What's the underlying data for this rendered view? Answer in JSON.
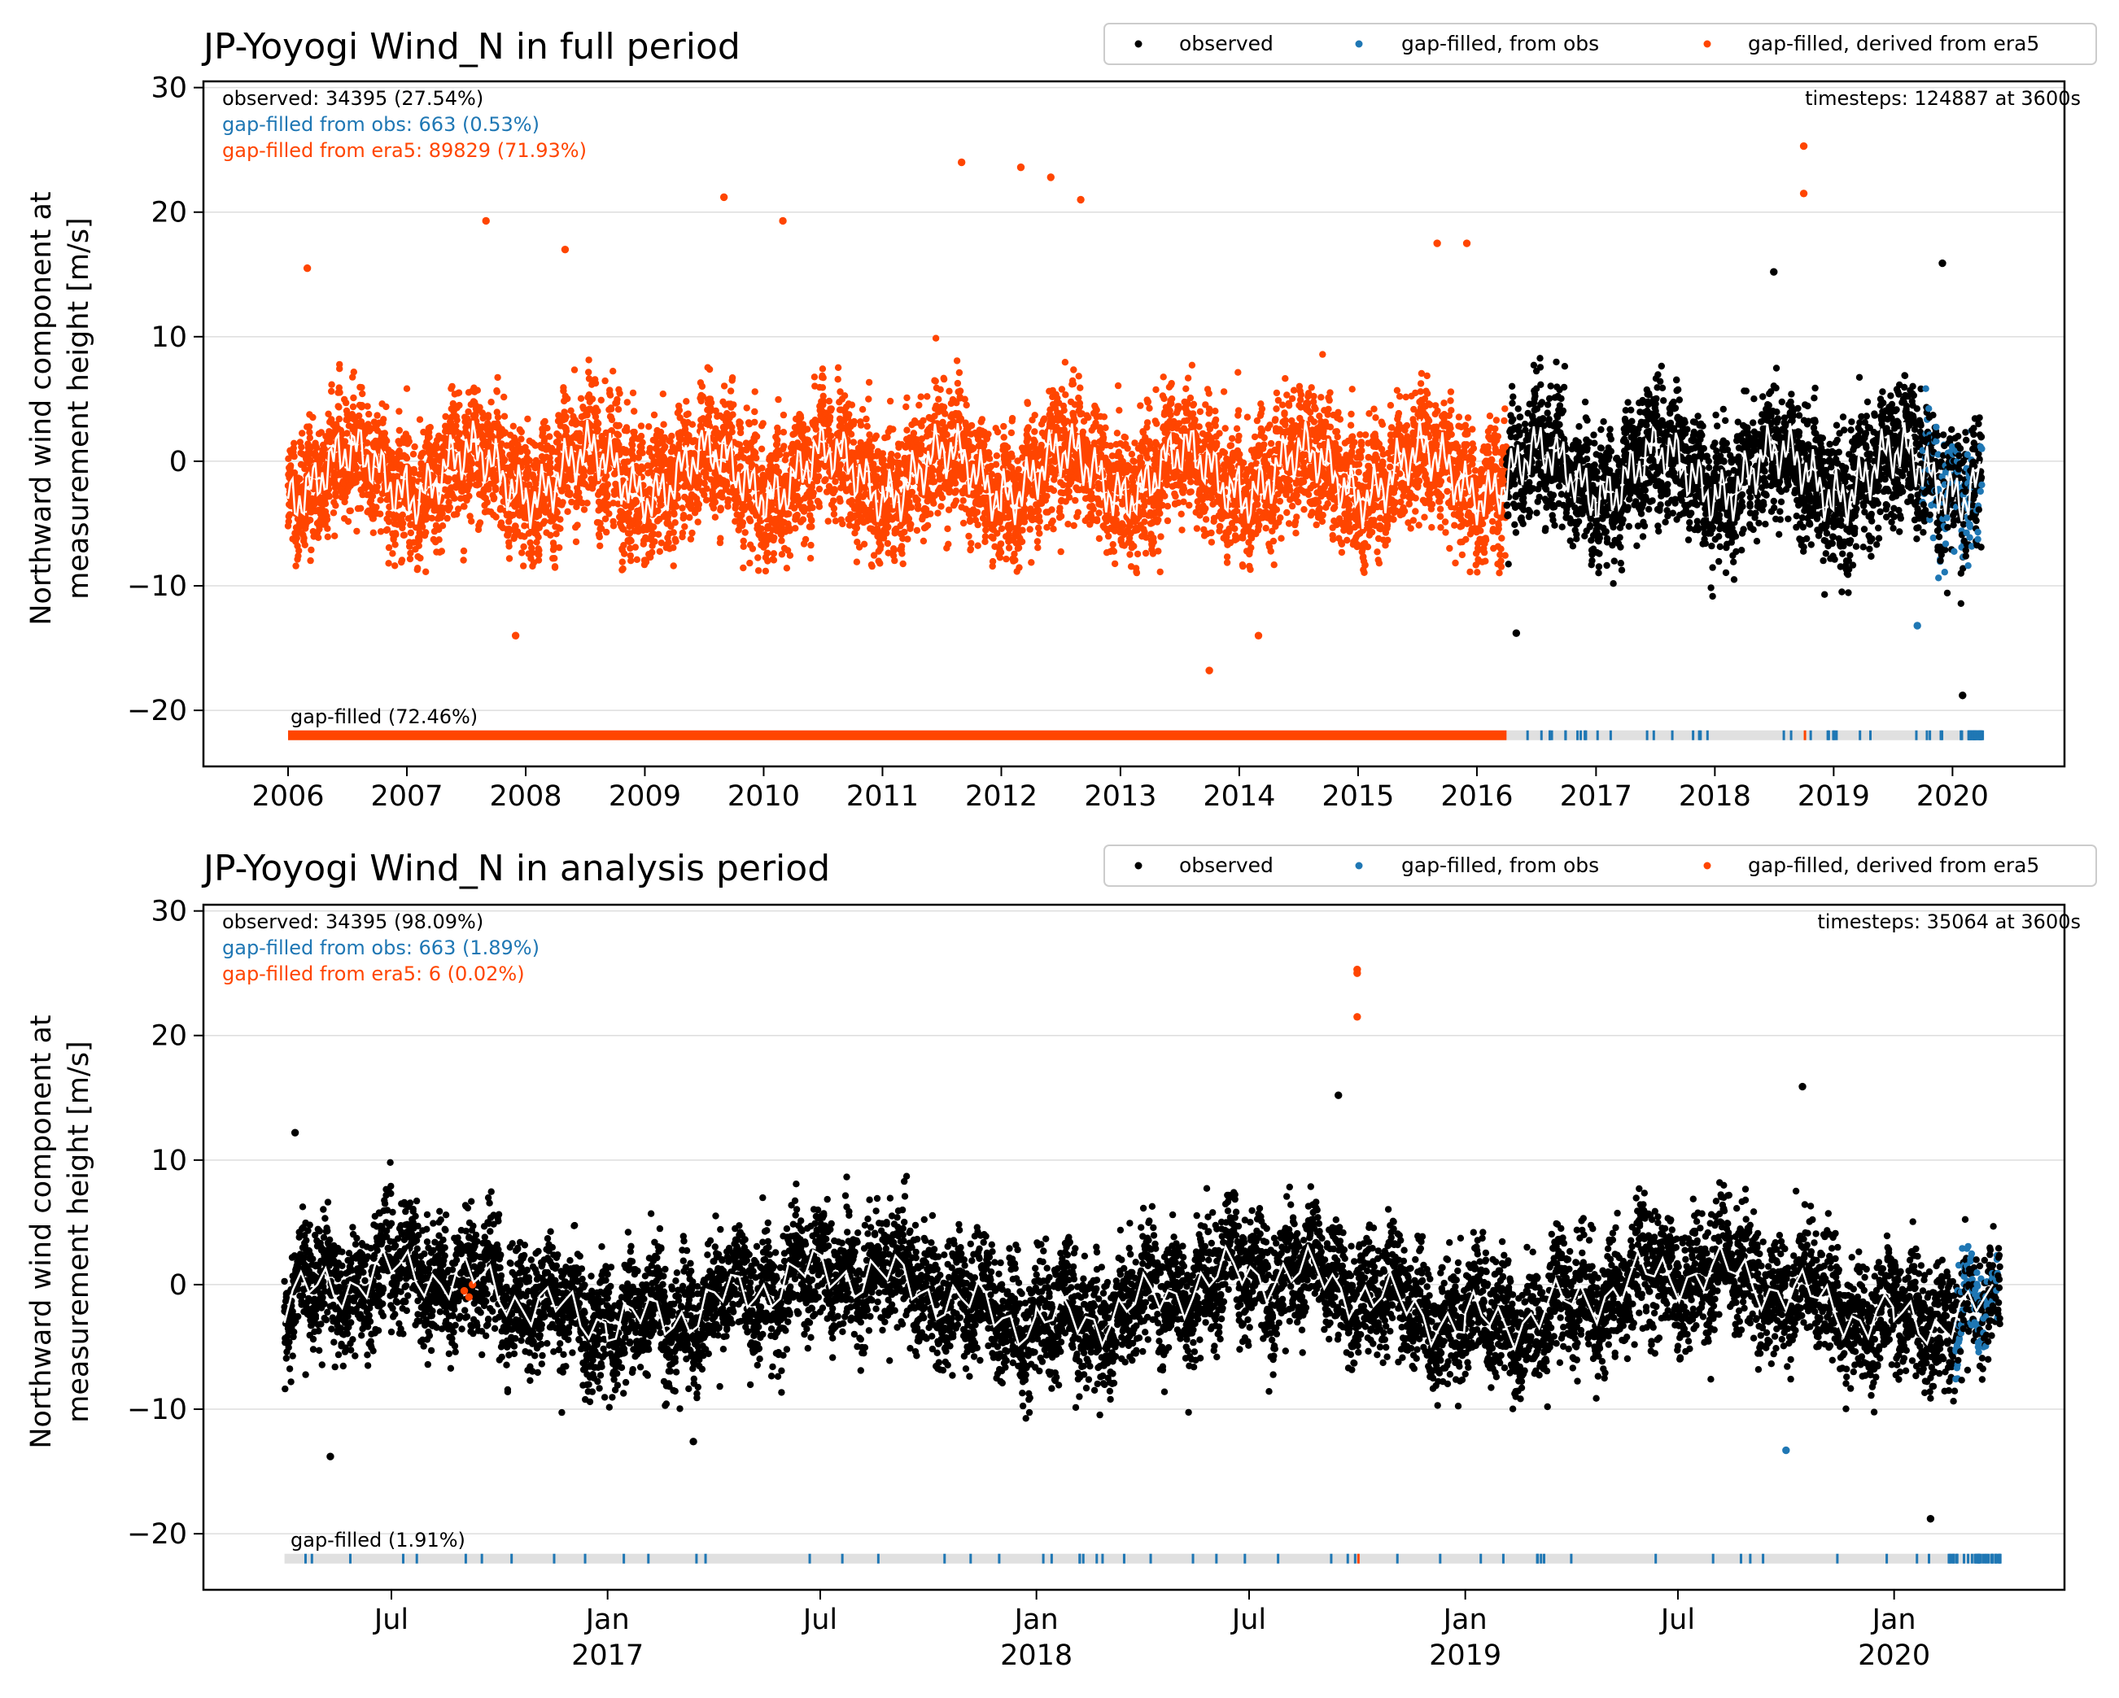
{
  "colors": {
    "observed": "#000000",
    "gapfilled_obs": "#1f77b4",
    "gapfilled_era5": "#ff4500",
    "mean_line": "#ffffff",
    "gap_bar_background": "#e0e0e0",
    "grid": "#dddddd"
  },
  "legend": {
    "observed": "observed",
    "gapfilled_obs": "gap-filled, from obs",
    "gapfilled_era5": "gap-filled, derived from era5"
  },
  "chart_data": [
    {
      "type": "scatter",
      "title": "JP-Yoyogi Wind_N in full period",
      "xlabel": "",
      "ylabel_line1": "Northward wind component at",
      "ylabel_line2": "measurement height [m/s]",
      "ylim": [
        -24.5,
        30.5
      ],
      "yticks": [
        -20,
        -10,
        0,
        10,
        20,
        30
      ],
      "ytick_labels": [
        "−20",
        "−10",
        "0",
        "10",
        "20",
        "30"
      ],
      "xlim": [
        "2005-04-16",
        "2020-12-10"
      ],
      "xticks": [
        "2006-01-01",
        "2007-01-01",
        "2008-01-01",
        "2009-01-01",
        "2010-01-01",
        "2011-01-01",
        "2012-01-01",
        "2013-01-01",
        "2014-01-01",
        "2015-01-01",
        "2016-01-01",
        "2017-01-01",
        "2018-01-01",
        "2019-01-01",
        "2020-01-01"
      ],
      "xtick_labels": [
        [
          "2006"
        ],
        [
          "2007"
        ],
        [
          "2008"
        ],
        [
          "2009"
        ],
        [
          "2010"
        ],
        [
          "2011"
        ],
        [
          "2012"
        ],
        [
          "2013"
        ],
        [
          "2014"
        ],
        [
          "2015"
        ],
        [
          "2016"
        ],
        [
          "2017"
        ],
        [
          "2018"
        ],
        [
          "2019"
        ],
        [
          "2020"
        ]
      ],
      "data_start": "2006-01-01",
      "data_end": "2020-03-31",
      "era5_end": "2016-04-01",
      "stats": {
        "observed": "observed: 34395 (27.54%)",
        "gapfilled_obs": "gap-filled from obs: 663 (0.53%)",
        "gapfilled_era5": "gap-filled from era5: 89829 (71.93%)",
        "timesteps": "timesteps: 124887 at 3600s",
        "gap_label": "gap-filled (72.46%)"
      },
      "series": [
        {
          "name": "gap-filled, derived from era5",
          "color": "#ff4500",
          "period": [
            "2006-01-01",
            "2016-04-01"
          ],
          "typical_range": [
            -9,
            11
          ],
          "outliers": [
            {
              "x": "2006-03-01",
              "y": 15.5
            },
            {
              "x": "2007-09-01",
              "y": 19.3
            },
            {
              "x": "2008-05-01",
              "y": 17.0
            },
            {
              "x": "2009-09-01",
              "y": 21.2
            },
            {
              "x": "2010-03-01",
              "y": 19.3
            },
            {
              "x": "2011-09-01",
              "y": 24.0
            },
            {
              "x": "2012-03-01",
              "y": 23.6
            },
            {
              "x": "2012-06-01",
              "y": 22.8
            },
            {
              "x": "2012-09-01",
              "y": 21.0
            },
            {
              "x": "2013-10-01",
              "y": -16.8
            },
            {
              "x": "2015-09-01",
              "y": 17.5
            },
            {
              "x": "2015-12-01",
              "y": 17.5
            },
            {
              "x": "2018-10-01",
              "y": 25.3
            },
            {
              "x": "2018-10-01",
              "y": 21.5
            },
            {
              "x": "2007-12-01",
              "y": -14.0
            },
            {
              "x": "2014-03-01",
              "y": -14.0
            }
          ]
        },
        {
          "name": "observed",
          "color": "#000000",
          "period": [
            "2016-04-01",
            "2020-03-31"
          ],
          "typical_range": [
            -12,
            10
          ],
          "outliers": [
            {
              "x": "2019-12-01",
              "y": 15.9
            },
            {
              "x": "2018-07-01",
              "y": 15.2
            },
            {
              "x": "2020-02-01",
              "y": -18.8
            },
            {
              "x": "2016-05-01",
              "y": -13.8
            }
          ]
        },
        {
          "name": "gap-filled, from obs",
          "color": "#1f77b4",
          "period": [
            "2019-10-01",
            "2020-03-31"
          ],
          "typical_range": [
            -10,
            9
          ],
          "outliers": [
            {
              "x": "2019-09-15",
              "y": -13.2
            }
          ]
        }
      ]
    },
    {
      "type": "scatter",
      "title": "JP-Yoyogi Wind_N in analysis period",
      "xlabel": "",
      "ylabel_line1": "Northward wind component at",
      "ylabel_line2": "measurement height [m/s]",
      "ylim": [
        -24.5,
        30.5
      ],
      "yticks": [
        -20,
        -10,
        0,
        10,
        20,
        30
      ],
      "ytick_labels": [
        "−20",
        "−10",
        "0",
        "10",
        "20",
        "30"
      ],
      "xlim": [
        "2016-01-23",
        "2020-05-25"
      ],
      "xticks": [
        "2016-07-01",
        "2017-01-01",
        "2017-07-01",
        "2018-01-01",
        "2018-07-01",
        "2019-01-01",
        "2019-07-01",
        "2020-01-01"
      ],
      "xtick_labels": [
        [
          "Jul"
        ],
        [
          "Jan",
          "2017"
        ],
        [
          "Jul"
        ],
        [
          "Jan",
          "2018"
        ],
        [
          "Jul"
        ],
        [
          "Jan",
          "2019"
        ],
        [
          "Jul"
        ],
        [
          "Jan",
          "2020"
        ]
      ],
      "data_start": "2016-04-01",
      "data_end": "2020-03-31",
      "stats": {
        "observed": "observed: 34395 (98.09%)",
        "gapfilled_obs": "gap-filled from obs: 663 (1.89%)",
        "gapfilled_era5": "gap-filled from era5: 6 (0.02%)",
        "timesteps": "timesteps: 35064 at 3600s",
        "gap_label": "gap-filled (1.91%)"
      },
      "series": [
        {
          "name": "observed",
          "color": "#000000",
          "period": [
            "2016-04-01",
            "2020-03-31"
          ],
          "typical_range": [
            -11,
            10
          ],
          "outliers": [
            {
              "x": "2016-04-10",
              "y": 12.2
            },
            {
              "x": "2016-05-10",
              "y": -13.8
            },
            {
              "x": "2018-09-15",
              "y": 15.2
            },
            {
              "x": "2019-10-15",
              "y": 15.9
            },
            {
              "x": "2020-02-01",
              "y": -18.8
            },
            {
              "x": "2017-03-15",
              "y": -12.6
            }
          ]
        },
        {
          "name": "gap-filled, from obs",
          "color": "#1f77b4",
          "period": [
            "2020-02-20",
            "2020-03-31"
          ],
          "typical_range": [
            -8,
            9
          ],
          "outliers": [
            {
              "x": "2019-10-01",
              "y": -13.3
            }
          ]
        },
        {
          "name": "gap-filled, derived from era5",
          "color": "#ff4500",
          "period": [
            "2018-10-01",
            "2018-10-02"
          ],
          "typical_range": [
            21.5,
            25.3
          ],
          "outliers": [
            {
              "x": "2018-10-01",
              "y": 25.3
            },
            {
              "x": "2018-10-01",
              "y": 25.0
            },
            {
              "x": "2018-10-01",
              "y": 21.5
            },
            {
              "x": "2016-09-01",
              "y": -0.5
            },
            {
              "x": "2016-09-05",
              "y": -1.0
            },
            {
              "x": "2016-09-08",
              "y": 0.0
            }
          ]
        }
      ]
    }
  ]
}
